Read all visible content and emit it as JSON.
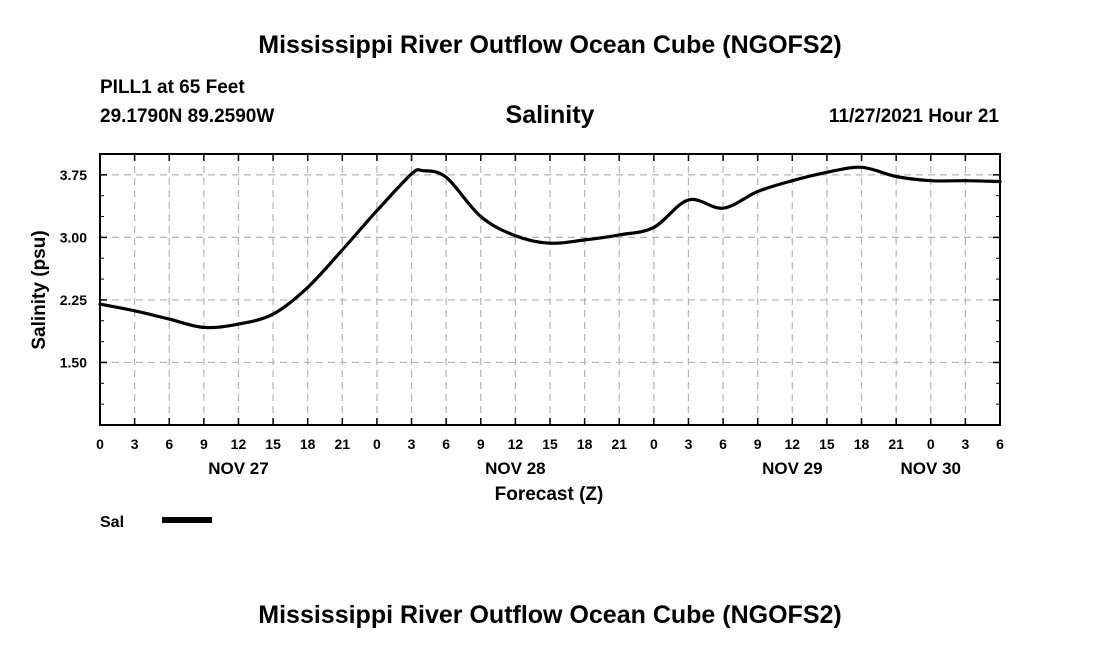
{
  "header": {
    "title": "Mississippi River Outflow Ocean Cube (NGOFS2)",
    "station": "PILL1 at 65 Feet",
    "coords": "29.1790N  89.2590W",
    "datetime": "11/27/2021 Hour 21"
  },
  "footer": {
    "title": "Mississippi River Outflow Ocean Cube (NGOFS2)"
  },
  "chart_data": {
    "type": "line",
    "title": "Salinity",
    "xlabel": "Forecast (Z)",
    "ylabel": "Salinity (psu)",
    "x_unit": "hours from NOV 27 00Z",
    "xlim": [
      0,
      78
    ],
    "ylim": [
      0.75,
      4.0
    ],
    "y_ticks": [
      1.5,
      2.25,
      3.0,
      3.75
    ],
    "y_tick_labels": [
      "1.50",
      "2.25",
      "3.00",
      "3.75"
    ],
    "x_ticks": [
      0,
      3,
      6,
      9,
      12,
      15,
      18,
      21,
      24,
      27,
      30,
      33,
      36,
      39,
      42,
      45,
      48,
      51,
      54,
      57,
      60,
      63,
      66,
      69,
      72,
      75,
      78
    ],
    "x_tick_labels": [
      "0",
      "3",
      "6",
      "9",
      "12",
      "15",
      "18",
      "21",
      "0",
      "3",
      "6",
      "9",
      "12",
      "15",
      "18",
      "21",
      "0",
      "3",
      "6",
      "9",
      "12",
      "15",
      "18",
      "21",
      "0",
      "3",
      "6"
    ],
    "date_labels": [
      {
        "hour": 12,
        "label": "NOV 27"
      },
      {
        "hour": 36,
        "label": "NOV 28"
      },
      {
        "hour": 60,
        "label": "NOV 29"
      },
      {
        "hour": 72,
        "label": "NOV 30"
      }
    ],
    "grid": true,
    "series": [
      {
        "name": "Sal",
        "color": "#000000",
        "x": [
          0,
          3,
          6,
          9,
          12,
          15,
          18,
          21,
          24,
          27,
          28,
          30,
          33,
          36,
          39,
          42,
          45,
          48,
          51,
          54,
          57,
          60,
          63,
          66,
          69,
          72,
          75,
          78
        ],
        "y": [
          2.2,
          2.12,
          2.02,
          1.92,
          1.96,
          2.08,
          2.4,
          2.85,
          3.32,
          3.76,
          3.8,
          3.72,
          3.25,
          3.02,
          2.93,
          2.97,
          3.03,
          3.12,
          3.45,
          3.35,
          3.55,
          3.68,
          3.78,
          3.84,
          3.73,
          3.68,
          3.68,
          3.67
        ]
      }
    ],
    "legend": {
      "position": "bottom-left",
      "entries": [
        "Sal"
      ]
    }
  }
}
